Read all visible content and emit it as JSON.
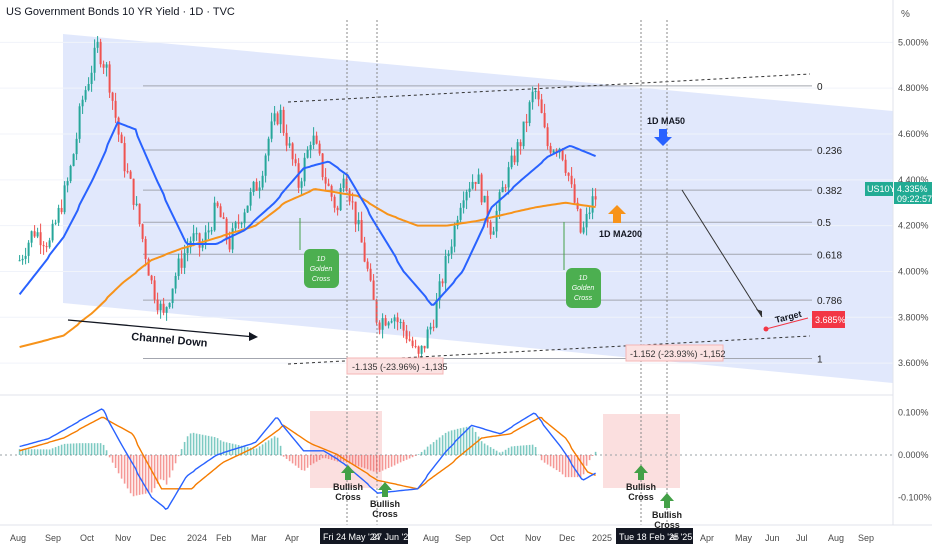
{
  "header": {
    "title": "US Government Bonds 10 YR Yield · 1D · TVC",
    "unit": "%"
  },
  "chart_data": {
    "type": "line",
    "title": "US Government Bonds 10 YR Yield · 1D · TVC",
    "y_unit": "%",
    "ylim": [
      3.5,
      5.15
    ],
    "macd_ylim": [
      -0.13,
      0.13
    ],
    "y_ticks": [
      "5.000%",
      "4.800%",
      "4.600%",
      "4.400%",
      "4.200%",
      "4.000%",
      "3.800%",
      "3.600%"
    ],
    "macd_ticks": [
      "0.100%",
      "0.000%",
      "-0.100%"
    ],
    "x_labels": [
      "Aug",
      "Sep",
      "Oct",
      "Nov",
      "Dec",
      "2024",
      "Feb",
      "Mar",
      "Apr",
      "Aug",
      "Sep",
      "Oct",
      "Nov",
      "Dec",
      "2025",
      "Apr",
      "May",
      "Jun",
      "Jul",
      "Aug",
      "Sep"
    ],
    "date_markers": [
      "Fri 24 May '24",
      "27 Jun '24",
      "Tue 18 Feb '25",
      "ar '25"
    ],
    "price_series": {
      "name": "US10Y",
      "points": [
        [
          "2023-08-01",
          4.05
        ],
        [
          "2023-08-15",
          4.18
        ],
        [
          "2023-09-01",
          4.12
        ],
        [
          "2023-09-20",
          4.4
        ],
        [
          "2023-10-05",
          4.75
        ],
        [
          "2023-10-20",
          4.98
        ],
        [
          "2023-11-01",
          4.85
        ],
        [
          "2023-11-15",
          4.5
        ],
        [
          "2023-12-01",
          4.25
        ],
        [
          "2023-12-15",
          3.95
        ],
        [
          "2023-12-27",
          3.8
        ],
        [
          "2024-01-10",
          4.0
        ],
        [
          "2024-01-25",
          4.15
        ],
        [
          "2024-02-05",
          4.1
        ],
        [
          "2024-02-20",
          4.28
        ],
        [
          "2024-03-05",
          4.12
        ],
        [
          "2024-03-20",
          4.28
        ],
        [
          "2024-04-05",
          4.4
        ],
        [
          "2024-04-15",
          4.6
        ],
        [
          "2024-04-25",
          4.7
        ],
        [
          "2024-05-05",
          4.55
        ],
        [
          "2024-05-15",
          4.38
        ],
        [
          "2024-05-29",
          4.6
        ],
        [
          "2024-06-10",
          4.42
        ],
        [
          "2024-06-25",
          4.25
        ],
        [
          "2024-07-01",
          4.45
        ],
        [
          "2024-07-15",
          4.2
        ],
        [
          "2024-08-05",
          3.78
        ],
        [
          "2024-08-20",
          3.82
        ],
        [
          "2024-09-05",
          3.72
        ],
        [
          "2024-09-16",
          3.62
        ],
        [
          "2024-10-01",
          3.78
        ],
        [
          "2024-10-15",
          4.05
        ],
        [
          "2024-11-01",
          4.35
        ],
        [
          "2024-11-15",
          4.42
        ],
        [
          "2024-12-01",
          4.18
        ],
        [
          "2024-12-15",
          4.4
        ],
        [
          "2025-01-01",
          4.58
        ],
        [
          "2025-01-14",
          4.8
        ],
        [
          "2025-01-28",
          4.55
        ],
        [
          "2025-02-10",
          4.55
        ],
        [
          "2025-02-25",
          4.3
        ],
        [
          "2025-03-04",
          4.15
        ],
        [
          "2025-03-14",
          4.3
        ],
        [
          "2025-03-20",
          4.335
        ]
      ]
    },
    "ma50": {
      "name": "1D MA50",
      "points": [
        [
          "2023-08-01",
          3.9
        ],
        [
          "2023-09-15",
          4.15
        ],
        [
          "2023-10-15",
          4.4
        ],
        [
          "2023-11-10",
          4.65
        ],
        [
          "2023-11-28",
          4.62
        ],
        [
          "2023-12-20",
          4.4
        ],
        [
          "2024-01-20",
          4.12
        ],
        [
          "2024-02-20",
          4.12
        ],
        [
          "2024-03-20",
          4.18
        ],
        [
          "2024-04-20",
          4.3
        ],
        [
          "2024-05-20",
          4.45
        ],
        [
          "2024-06-15",
          4.48
        ],
        [
          "2024-07-05",
          4.42
        ],
        [
          "2024-08-01",
          4.22
        ],
        [
          "2024-09-01",
          4.0
        ],
        [
          "2024-10-01",
          3.85
        ],
        [
          "2024-11-01",
          4.0
        ],
        [
          "2024-12-01",
          4.28
        ],
        [
          "2025-01-01",
          4.4
        ],
        [
          "2025-01-28",
          4.5
        ],
        [
          "2025-02-20",
          4.55
        ],
        [
          "2025-03-20",
          4.5
        ]
      ]
    },
    "ma200": {
      "name": "1D MA200",
      "points": [
        [
          "2023-08-01",
          3.67
        ],
        [
          "2023-09-15",
          3.72
        ],
        [
          "2023-10-15",
          3.82
        ],
        [
          "2023-11-15",
          3.95
        ],
        [
          "2023-12-15",
          4.05
        ],
        [
          "2024-01-15",
          4.1
        ],
        [
          "2024-03-01",
          4.16
        ],
        [
          "2024-04-01",
          4.2
        ],
        [
          "2024-05-01",
          4.3
        ],
        [
          "2024-06-01",
          4.36
        ],
        [
          "2024-07-15",
          4.33
        ],
        [
          "2024-08-15",
          4.25
        ],
        [
          "2024-09-15",
          4.2
        ],
        [
          "2024-10-15",
          4.2
        ],
        [
          "2024-11-15",
          4.22
        ],
        [
          "2024-12-15",
          4.25
        ],
        [
          "2025-01-15",
          4.28
        ],
        [
          "2025-02-15",
          4.3
        ],
        [
          "2025-03-20",
          4.28
        ]
      ]
    },
    "macd": {
      "macd_line": [
        [
          "2023-08-01",
          0.02
        ],
        [
          "2023-09-01",
          0.04
        ],
        [
          "2023-10-01",
          0.08
        ],
        [
          "2023-10-25",
          0.11
        ],
        [
          "2023-11-15",
          0.02
        ],
        [
          "2023-12-15",
          -0.1
        ],
        [
          "2023-12-31",
          -0.13
        ],
        [
          "2024-01-20",
          -0.05
        ],
        [
          "2024-02-20",
          0.0
        ],
        [
          "2024-04-01",
          0.03
        ],
        [
          "2024-04-22",
          0.09
        ],
        [
          "2024-05-20",
          0.01
        ],
        [
          "2024-06-10",
          0.01
        ],
        [
          "2024-07-01",
          -0.02
        ],
        [
          "2024-08-05",
          -0.09
        ],
        [
          "2024-09-15",
          -0.08
        ],
        [
          "2024-10-15",
          0.01
        ],
        [
          "2024-11-10",
          0.07
        ],
        [
          "2024-12-10",
          0.05
        ],
        [
          "2025-01-14",
          0.1
        ],
        [
          "2025-02-10",
          0.02
        ],
        [
          "2025-03-05",
          -0.06
        ],
        [
          "2025-03-20",
          -0.04
        ]
      ],
      "signal_line": [
        [
          "2023-08-01",
          0.01
        ],
        [
          "2023-09-15",
          0.04
        ],
        [
          "2023-10-25",
          0.09
        ],
        [
          "2023-11-25",
          0.05
        ],
        [
          "2023-12-25",
          -0.08
        ],
        [
          "2024-01-25",
          -0.08
        ],
        [
          "2024-02-25",
          -0.02
        ],
        [
          "2024-04-01",
          0.02
        ],
        [
          "2024-04-30",
          0.07
        ],
        [
          "2024-05-25",
          0.03
        ],
        [
          "2024-06-25",
          0.0
        ],
        [
          "2024-08-05",
          -0.06
        ],
        [
          "2024-09-15",
          -0.08
        ],
        [
          "2024-10-20",
          -0.02
        ],
        [
          "2024-11-20",
          0.04
        ],
        [
          "2024-12-20",
          0.05
        ],
        [
          "2025-01-20",
          0.09
        ],
        [
          "2025-02-15",
          0.04
        ],
        [
          "2025-03-10",
          -0.04
        ],
        [
          "2025-03-20",
          -0.05
        ]
      ]
    },
    "fib_levels": [
      {
        "label": "0",
        "value": 4.81
      },
      {
        "label": "0.236",
        "value": 4.53
      },
      {
        "label": "0.382",
        "value": 4.355
      },
      {
        "label": "0.5",
        "value": 4.215
      },
      {
        "label": "0.618",
        "value": 4.075
      },
      {
        "label": "0.786",
        "value": 3.875
      },
      {
        "label": "1",
        "value": 3.62
      }
    ],
    "last_price": {
      "symbol": "US10Y",
      "value": "4.335%",
      "time": "09:22:57"
    },
    "target": {
      "label": "Target",
      "value": "3.685%"
    },
    "annotations": {
      "channel": "Channel Down",
      "ma50_label": "1D MA50",
      "ma200_label": "1D MA200",
      "golden_cross_1": "1D Golden Cross",
      "golden_cross_2": "1D Golden Cross",
      "measure_1": "-1.135 (-23.96%) -1,135",
      "measure_2": "-1.152 (-23.93%) -1,152",
      "bullish_cross": "Bullish Cross"
    }
  },
  "colors": {
    "candle_up": "#26a69a",
    "candle_down": "#ef5350",
    "ma50": "#2962ff",
    "ma200": "#f7931a",
    "channel": "#d7e0fb",
    "golden": "#43a047",
    "target": "#f23645",
    "highlight": "#f8c9c9"
  }
}
